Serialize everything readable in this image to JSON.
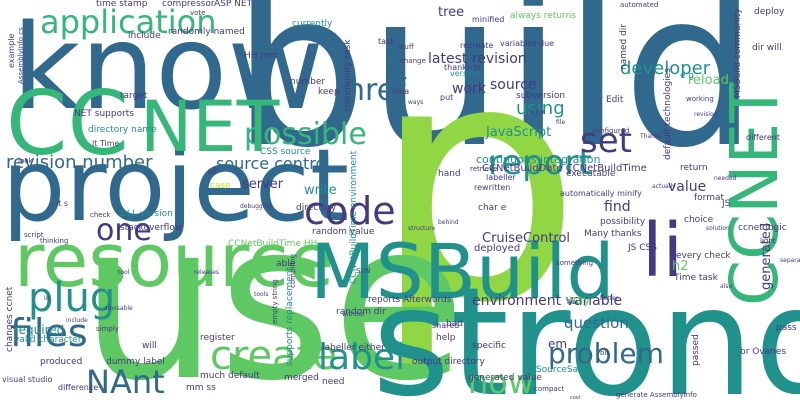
{
  "colors": {
    "dark_purple": "#440154",
    "indigo": "#443983",
    "blue": "#31688e",
    "teal": "#21918c",
    "green": "#35b779",
    "light_green": "#5ec962",
    "lime": "#90d743",
    "yellow": "#c8e020"
  },
  "words": [
    {
      "t": "build",
      "c": "blue"
    },
    {
      "t": "p",
      "c": "lime"
    },
    {
      "t": "use",
      "c": "light_green"
    },
    {
      "t": "strong",
      "c": "teal"
    },
    {
      "t": "know",
      "c": "blue"
    },
    {
      "t": "project",
      "c": "blue"
    },
    {
      "t": "resource",
      "c": "light_green"
    },
    {
      "t": "CC",
      "c": "green"
    },
    {
      "t": "NET",
      "c": "green"
    },
    {
      "t": "MSBuild",
      "c": "teal"
    },
    {
      "t": "CCNET",
      "c": "green"
    },
    {
      "t": "application",
      "c": "green"
    },
    {
      "t": "li",
      "c": "indigo"
    },
    {
      "t": "code",
      "c": "indigo"
    },
    {
      "t": "report",
      "c": "teal"
    },
    {
      "t": "files",
      "c": "blue"
    },
    {
      "t": "plug",
      "c": "teal"
    },
    {
      "t": "create",
      "c": "light_green"
    },
    {
      "t": "label",
      "c": "teal"
    },
    {
      "t": "NAnt",
      "c": "blue"
    },
    {
      "t": "now",
      "c": "light_green"
    },
    {
      "t": "problem",
      "c": "blue"
    },
    {
      "t": "possible",
      "c": "green"
    },
    {
      "t": "set",
      "c": "indigo"
    },
    {
      "t": "href",
      "c": "blue"
    },
    {
      "t": "one",
      "c": "indigo"
    },
    {
      "t": "revision number",
      "c": "blue"
    },
    {
      "t": "source control",
      "c": "blue"
    },
    {
      "t": "environment variable",
      "c": "indigo"
    },
    {
      "t": "using",
      "c": "teal"
    },
    {
      "t": "developer",
      "c": "teal"
    },
    {
      "t": "latest revision",
      "c": "indigo"
    },
    {
      "t": "source",
      "c": "indigo"
    },
    {
      "t": "work",
      "c": "indigo"
    },
    {
      "t": "JavaScript",
      "c": "teal"
    },
    {
      "t": "question",
      "c": "blue"
    },
    {
      "t": "value",
      "c": "indigo"
    },
    {
      "t": "find",
      "c": "indigo"
    },
    {
      "t": "CruiseControl",
      "c": "indigo"
    },
    {
      "t": "server",
      "c": "indigo"
    },
    {
      "t": "write",
      "c": "teal"
    },
    {
      "t": "required",
      "c": "teal"
    },
    {
      "t": "generated",
      "c": "indigo"
    },
    {
      "t": "tree",
      "c": "indigo"
    },
    {
      "t": "reload",
      "c": "light_green"
    },
    {
      "t": "em",
      "c": "indigo"
    },
    {
      "t": "continuous integration",
      "c": "teal"
    },
    {
      "t": "CCNetBuildDate CCNetBuildTime",
      "c": "indigo"
    },
    {
      "t": "deployed",
      "c": "indigo"
    },
    {
      "t": "generated value",
      "c": "indigo"
    },
    {
      "t": "SourceSafe",
      "c": "teal"
    },
    {
      "t": "much default",
      "c": "indigo"
    },
    {
      "t": "merged",
      "c": "indigo"
    },
    {
      "t": "random dir",
      "c": "indigo"
    },
    {
      "t": "need",
      "c": "indigo"
    },
    {
      "t": "dummy label",
      "c": "indigo"
    },
    {
      "t": "valid character",
      "c": "teal"
    },
    {
      "t": "random value",
      "c": "indigo"
    },
    {
      "t": "stackoverflow",
      "c": "indigo"
    },
    {
      "t": "CSS source",
      "c": "teal"
    },
    {
      "t": "reports Afterwords",
      "c": "indigo"
    },
    {
      "t": "labeller either",
      "c": "indigo"
    },
    {
      "t": "output directory",
      "c": "indigo"
    },
    {
      "t": "way",
      "c": "light_green"
    },
    {
      "t": "h2",
      "c": "light_green"
    },
    {
      "t": "Edit",
      "c": "indigo"
    },
    {
      "t": "e g",
      "c": "teal"
    },
    {
      "t": "Many thanks",
      "c": "indigo"
    },
    {
      "t": "possibility",
      "c": "indigo"
    },
    {
      "t": "choice",
      "c": "indigo"
    },
    {
      "t": "format",
      "c": "indigo"
    },
    {
      "t": "return",
      "c": "indigo"
    },
    {
      "t": "ccnet logic",
      "c": "indigo"
    },
    {
      "t": "pass",
      "c": "indigo"
    },
    {
      "t": "br Ovanes",
      "c": "indigo"
    },
    {
      "t": "mm ss",
      "c": "indigo"
    },
    {
      "t": "time stamp",
      "c": "indigo"
    },
    {
      "t": "compressor",
      "c": "indigo"
    },
    {
      "t": "ASP NET",
      "c": "indigo"
    },
    {
      "t": "currently",
      "c": "teal"
    },
    {
      "t": "minified",
      "c": "indigo"
    },
    {
      "t": "always returns",
      "c": "light_green"
    },
    {
      "t": "include",
      "c": "indigo"
    },
    {
      "t": "randomly named",
      "c": "indigo"
    },
    {
      "t": "HH mm",
      "c": "indigo"
    },
    {
      "t": "thanks br",
      "c": "indigo"
    },
    {
      "t": "version",
      "c": "teal"
    },
    {
      "t": "variables due",
      "c": "indigo"
    },
    {
      "t": "recreate",
      "c": "indigo"
    },
    {
      "t": "subversion",
      "c": "indigo"
    },
    {
      "t": "keep",
      "c": "indigo"
    },
    {
      "t": "number",
      "c": "indigo"
    },
    {
      "t": "idea",
      "c": "indigo"
    },
    {
      "t": "put",
      "c": "indigo"
    },
    {
      "t": "target",
      "c": "indigo"
    },
    {
      "t": "NET supports",
      "c": "indigo"
    },
    {
      "t": "directory name",
      "c": "teal"
    },
    {
      "t": "lt Time",
      "c": "indigo"
    },
    {
      "t": "DLL version",
      "c": "teal"
    },
    {
      "t": "CCNetBuildTime HH",
      "c": "light_green"
    },
    {
      "t": "executable",
      "c": "indigo"
    },
    {
      "t": "labeller",
      "c": "indigo"
    },
    {
      "t": "rewritten",
      "c": "indigo"
    },
    {
      "t": "JS CSS",
      "c": "indigo"
    },
    {
      "t": "Time task",
      "c": "indigo"
    },
    {
      "t": "every check",
      "c": "indigo"
    },
    {
      "t": "deploy",
      "c": "indigo"
    },
    {
      "t": "dir will",
      "c": "indigo"
    },
    {
      "t": "MSBuild community",
      "c": "indigo"
    },
    {
      "t": "supports replacement",
      "c": "teal"
    },
    {
      "t": "register",
      "c": "indigo"
    },
    {
      "t": "will",
      "c": "indigo"
    },
    {
      "t": "help",
      "c": "indigo"
    },
    {
      "t": "specific",
      "c": "indigo"
    },
    {
      "t": "bad",
      "c": "indigo"
    },
    {
      "t": "shared",
      "c": "indigo"
    },
    {
      "t": "passed",
      "c": "indigo"
    },
    {
      "t": "produced",
      "c": "indigo"
    },
    {
      "t": "changes ccnet",
      "c": "indigo"
    },
    {
      "t": "directory",
      "c": "indigo"
    },
    {
      "t": "able",
      "c": "indigo"
    },
    {
      "t": "ul",
      "c": "indigo"
    },
    {
      "t": "case",
      "c": "yellow"
    },
    {
      "t": "hand",
      "c": "indigo"
    },
    {
      "t": "char e",
      "c": "indigo"
    },
    {
      "t": "task",
      "c": "indigo"
    },
    {
      "t": "named dir",
      "c": "indigo"
    },
    {
      "t": "default technologies",
      "c": "indigo"
    },
    {
      "t": "community task",
      "c": "indigo"
    },
    {
      "t": "CCNetBuildTime environment",
      "c": "teal"
    },
    {
      "t": "automatically minify",
      "c": "indigo"
    },
    {
      "t": "JS",
      "c": "indigo"
    },
    {
      "t": "different",
      "c": "indigo"
    },
    {
      "t": "example",
      "c": "indigo"
    },
    {
      "t": "visual studio",
      "c": "indigo"
    },
    {
      "t": "difference",
      "c": "indigo"
    },
    {
      "t": "AssemblyInfo cs",
      "c": "indigo"
    },
    {
      "t": "it s",
      "c": "indigo"
    },
    {
      "t": "script",
      "c": "indigo"
    },
    {
      "t": "thinking",
      "c": "indigo"
    },
    {
      "t": "empty string",
      "c": "indigo"
    },
    {
      "t": "simply",
      "c": "indigo"
    },
    {
      "t": "automated",
      "c": "indigo"
    },
    {
      "t": "stuff",
      "c": "indigo"
    },
    {
      "t": "change",
      "c": "indigo"
    },
    {
      "t": "compiling",
      "c": "indigo"
    },
    {
      "t": "SVN",
      "c": "indigo"
    },
    {
      "t": "retrieve",
      "c": "indigo"
    },
    {
      "t": "configured",
      "c": "indigo"
    },
    {
      "t": "working",
      "c": "indigo"
    },
    {
      "t": "something",
      "c": "indigo"
    },
    {
      "t": "generate AssemblyInfo",
      "c": "indigo"
    },
    {
      "t": "compact",
      "c": "indigo"
    },
    {
      "t": "bit",
      "c": "indigo"
    },
    {
      "t": "look",
      "c": "indigo"
    },
    {
      "t": "check",
      "c": "indigo"
    },
    {
      "t": "vote",
      "c": "indigo"
    },
    {
      "t": "light",
      "c": "indigo"
    },
    {
      "t": "separate",
      "c": "indigo"
    },
    {
      "t": "needed",
      "c": "indigo"
    },
    {
      "t": "revision",
      "c": "indigo"
    },
    {
      "t": "behind",
      "c": "indigo"
    },
    {
      "t": "structure",
      "c": "indigo"
    },
    {
      "t": "debugging",
      "c": "indigo"
    },
    {
      "t": "without",
      "c": "indigo"
    },
    {
      "t": "ways",
      "c": "indigo"
    },
    {
      "t": "allow",
      "c": "indigo"
    },
    {
      "t": "file",
      "c": "indigo"
    },
    {
      "t": "Thanks",
      "c": "indigo"
    },
    {
      "t": "actually",
      "c": "indigo"
    },
    {
      "t": "solution",
      "c": "indigo"
    },
    {
      "t": "also",
      "c": "indigo"
    },
    {
      "t": "cool",
      "c": "indigo"
    },
    {
      "t": "Id",
      "c": "indigo"
    },
    {
      "t": "tool",
      "c": "indigo"
    },
    {
      "t": "releases",
      "c": "indigo"
    },
    {
      "t": "tools",
      "c": "indigo"
    },
    {
      "t": "advisable",
      "c": "indigo"
    },
    {
      "t": "include",
      "c": "indigo"
    },
    {
      "t": "Test",
      "c": "indigo"
    },
    {
      "t": "better",
      "c": "indigo"
    },
    {
      "t": "cs",
      "c": "indigo"
    },
    {
      "t": "b",
      "c": "indigo"
    },
    {
      "t": "a",
      "c": "indigo"
    }
  ]
}
